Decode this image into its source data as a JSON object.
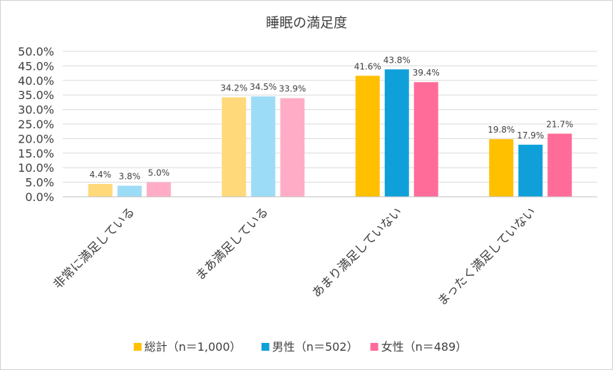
{
  "chart_data": {
    "type": "bar",
    "title": "睡眠の満足度",
    "categories": [
      "非常に満足している",
      "まあ満足している",
      "あまり満足していない",
      "まったく満足していない"
    ],
    "series": [
      {
        "name": "総計（n＝1,000）",
        "values": [
          4.4,
          34.2,
          41.6,
          19.8
        ],
        "labels": [
          "4.4%",
          "34.2%",
          "41.6%",
          "19.8%"
        ]
      },
      {
        "name": "男性（n＝502）",
        "values": [
          3.8,
          34.5,
          43.8,
          17.9
        ],
        "labels": [
          "3.8%",
          "34.5%",
          "43.8%",
          "17.9%"
        ]
      },
      {
        "name": "女性（n＝489）",
        "values": [
          5.0,
          33.9,
          39.4,
          21.7
        ],
        "labels": [
          "5.0%",
          "33.9%",
          "39.4%",
          "21.7%"
        ]
      }
    ],
    "y_ticks": [
      "0.0%",
      "5.0%",
      "10.0%",
      "15.0%",
      "20.0%",
      "25.0%",
      "30.0%",
      "35.0%",
      "40.0%",
      "45.0%",
      "50.0%"
    ],
    "ylim": [
      0,
      50
    ],
    "grid": true,
    "legend_position": "bottom",
    "colors": {
      "strong": [
        "#FFC000",
        "#0FA0DA",
        "#FF6C99"
      ],
      "light": [
        "#FFD97A",
        "#9DDCF7",
        "#FFADC6"
      ],
      "grid": "#d9d9d9",
      "axis": "#bfbfbf"
    }
  }
}
